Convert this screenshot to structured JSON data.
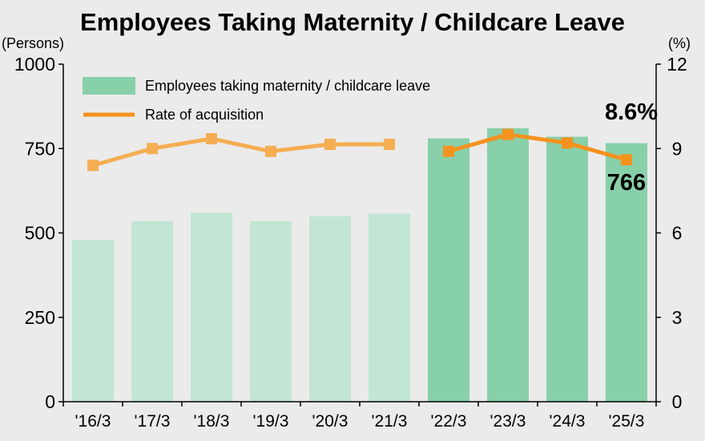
{
  "chart_data": {
    "type": "bar",
    "title": "Employees Taking Maternity / Childcare Leave",
    "y_left_unit": "(Persons)",
    "y_right_unit": "(%)",
    "ylim_left": [
      0,
      1000
    ],
    "ylim_right": [
      0,
      12
    ],
    "yticks_left": [
      "0",
      "250",
      "500",
      "750",
      "1000"
    ],
    "yticks_right": [
      "0",
      "3",
      "6",
      "9",
      "12"
    ],
    "grid": false,
    "legend_position": "top-left",
    "categories": [
      "'16/3",
      "'17/3",
      "'18/3",
      "'19/3",
      "'20/3",
      "'21/3",
      "'22/3",
      "'23/3",
      "'24/3",
      "'25/3"
    ],
    "series": [
      {
        "name": "Employees taking maternity / childcare leave",
        "type": "bar",
        "axis": "left",
        "values": [
          480,
          535,
          560,
          535,
          550,
          557,
          780,
          810,
          785,
          766
        ]
      },
      {
        "name": "Rate of acquisition",
        "type": "line",
        "axis": "right",
        "segments": [
          [
            0,
            5
          ],
          [
            6,
            9
          ]
        ],
        "values": [
          8.4,
          9.0,
          9.35,
          8.9,
          9.15,
          9.15,
          8.9,
          9.5,
          9.2,
          8.6
        ]
      }
    ],
    "annotations": [
      {
        "text": "8.6%",
        "category": "'25/3"
      },
      {
        "text": "766",
        "category": "'25/3"
      }
    ],
    "colors": {
      "bar_light": "#c2e6d3",
      "bar_dark": "#88d0aa",
      "line_light": "#f5ae52",
      "line_dark": "#f5921e",
      "axis": "#000000"
    }
  }
}
